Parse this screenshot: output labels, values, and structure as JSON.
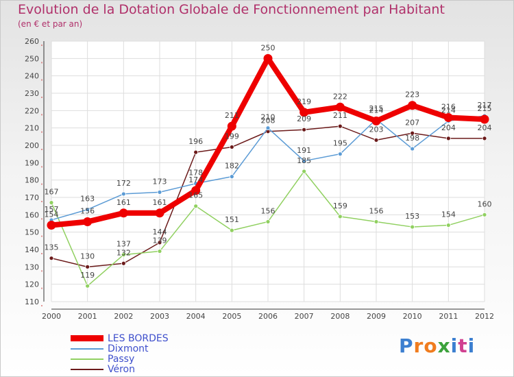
{
  "header": {
    "title": "Evolution de la Dotation Globale de Fonctionnement par Habitant",
    "subtitle": "(en € et par an)"
  },
  "logo": {
    "text": "Proxiti",
    "colors": [
      "#3c7fd0",
      "#f07c1e",
      "#f07c1e",
      "#3ca23c",
      "#3c7fd0",
      "#d04090",
      "#3c7fd0"
    ]
  },
  "chart_data": {
    "type": "line",
    "title": "Evolution de la Dotation Globale de Fonctionnement par Habitant",
    "subtitle": "(en € et par an)",
    "xlabel": "",
    "ylabel": "",
    "x": [
      "2000",
      "2001",
      "2002",
      "2003",
      "2004",
      "2005",
      "2006",
      "2007",
      "2008",
      "2009",
      "2010",
      "2011",
      "2012"
    ],
    "ylim": [
      110,
      260
    ],
    "yticks": [
      110,
      120,
      130,
      140,
      150,
      160,
      170,
      180,
      190,
      200,
      210,
      220,
      230,
      240,
      250,
      260
    ],
    "grid": true,
    "legend_position": "bottom-left",
    "series": [
      {
        "name": "Véron",
        "color": "#6b1a1a",
        "width": "thin",
        "values": [
          135,
          130,
          132,
          144,
          196,
          199,
          208,
          209,
          211,
          203,
          207,
          204,
          204
        ],
        "labels": [
          "135",
          "130",
          "132",
          "144",
          "196",
          "199",
          "208",
          "209",
          "211",
          "203",
          "207",
          "204",
          "204"
        ]
      },
      {
        "name": "Passy",
        "color": "#90d060",
        "width": "thin",
        "values": [
          167,
          119,
          137,
          139,
          165,
          151,
          156,
          185,
          159,
          156,
          153,
          154,
          160
        ],
        "labels": [
          "167",
          "119",
          "137",
          "139",
          "165",
          "151",
          "156",
          "185",
          "159",
          "156",
          "153",
          "154",
          "160"
        ]
      },
      {
        "name": "Dixmont",
        "color": "#5b9bd5",
        "width": "thin",
        "values": [
          157,
          163,
          172,
          173,
          178,
          182,
          210,
          191,
          195,
          215,
          198,
          214,
          217
        ],
        "labels": [
          "157",
          "163",
          "172",
          "173",
          "178",
          "182",
          "210",
          "191",
          "195",
          "215",
          "198",
          "214",
          "217"
        ]
      },
      {
        "name": "LES BORDES",
        "color": "#ee0000",
        "width": "thick",
        "values": [
          154,
          156,
          161,
          161,
          174,
          211,
          250,
          219,
          222,
          214,
          223,
          216,
          215
        ],
        "labels": [
          "154",
          "156",
          "161",
          "161",
          "174",
          "211",
          "250",
          "219",
          "222",
          "214",
          "223",
          "216",
          "215"
        ]
      }
    ],
    "legend": [
      "LES BORDES",
      "Dixmont",
      "Passy",
      "Véron"
    ]
  }
}
